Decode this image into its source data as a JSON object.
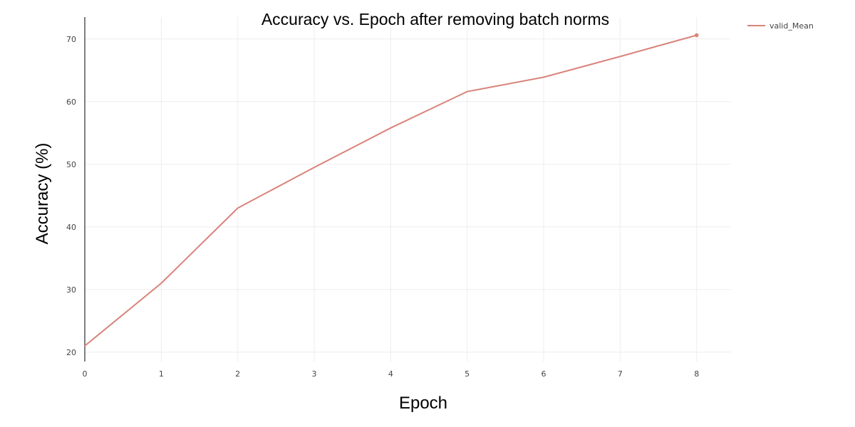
{
  "chart_data": {
    "type": "line",
    "title": "Accuracy vs. Epoch after removing batch norms",
    "xlabel": "Epoch",
    "ylabel": "Accuracy (%)",
    "x": [
      0,
      1,
      2,
      3,
      4,
      5,
      6,
      7,
      8
    ],
    "xticks": [
      0,
      1,
      2,
      3,
      4,
      5,
      6,
      7,
      8
    ],
    "yticks": [
      20,
      30,
      40,
      50,
      60,
      70
    ],
    "xlim": [
      0,
      8.45
    ],
    "ylim": [
      18.5,
      73.5
    ],
    "grid": true,
    "legend_position": "top-right",
    "series": [
      {
        "name": "valid_Mean",
        "color": "#d9837b",
        "values": [
          21.0,
          31.0,
          43.0,
          49.5,
          55.8,
          61.6,
          63.9,
          67.2,
          70.6
        ]
      }
    ]
  }
}
